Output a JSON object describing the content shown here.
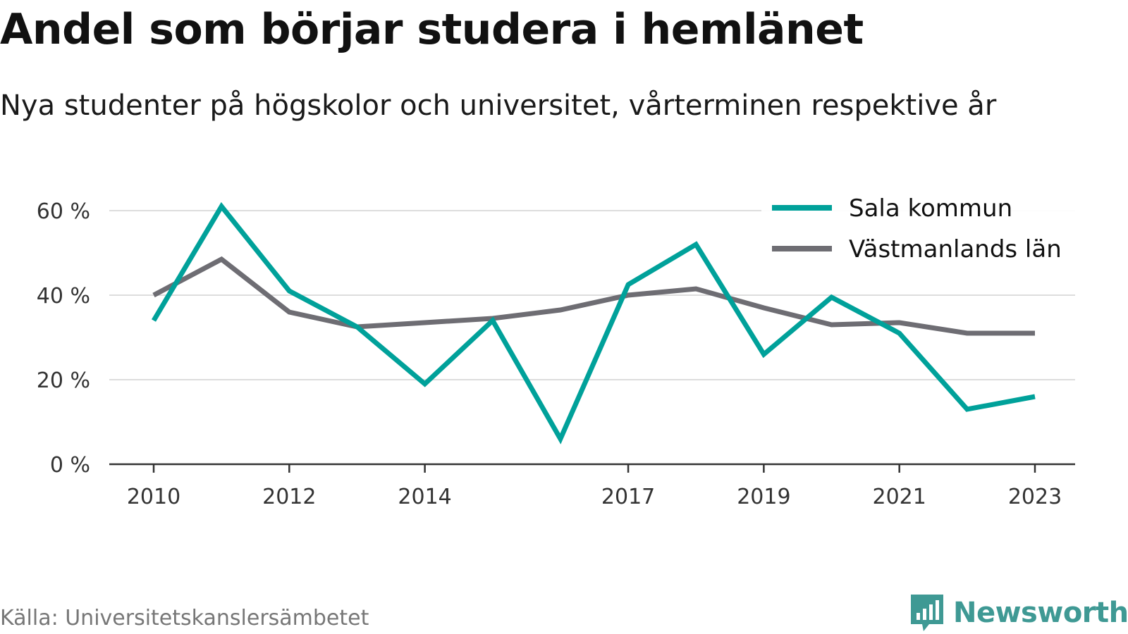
{
  "title": "Andel som börjar studera i hemlänet",
  "subtitle": "Nya studenter på högskolor och universitet, vårterminen respektive år",
  "source": "Källa: Universitetskanslersämbetet",
  "brand": {
    "name": "Newsworthy",
    "icon": "newsworthy-bar-chart-icon",
    "color": "#3f9994"
  },
  "chart_data": {
    "type": "line",
    "x": [
      2010,
      2011,
      2012,
      2013,
      2014,
      2015,
      2016,
      2017,
      2018,
      2019,
      2020,
      2021,
      2022,
      2023
    ],
    "x_tick_values": [
      2010,
      2012,
      2014,
      2017,
      2019,
      2021,
      2023
    ],
    "x_tick_labels": [
      "2010",
      "2012",
      "2014",
      "2017",
      "2019",
      "2021",
      "2023"
    ],
    "y_ticks": [
      0,
      20,
      40,
      60
    ],
    "y_tick_labels": [
      "0 %",
      "20 %",
      "40 %",
      "60 %"
    ],
    "ylim": [
      0,
      60
    ],
    "xlabel": "",
    "ylabel": "",
    "grid": true,
    "legend_position": "top-right",
    "series": [
      {
        "name": "Sala kommun",
        "color": "#00a19a",
        "values": [
          34,
          61,
          41,
          32.5,
          19,
          34,
          6,
          42.5,
          52,
          26,
          39.5,
          31,
          13,
          16
        ]
      },
      {
        "name": "Västmanlands län",
        "color": "#6e6d73",
        "values": [
          40,
          48.5,
          36,
          32.5,
          33.5,
          34.5,
          36.5,
          40,
          41.5,
          37,
          33,
          33.5,
          31,
          31
        ]
      }
    ]
  }
}
